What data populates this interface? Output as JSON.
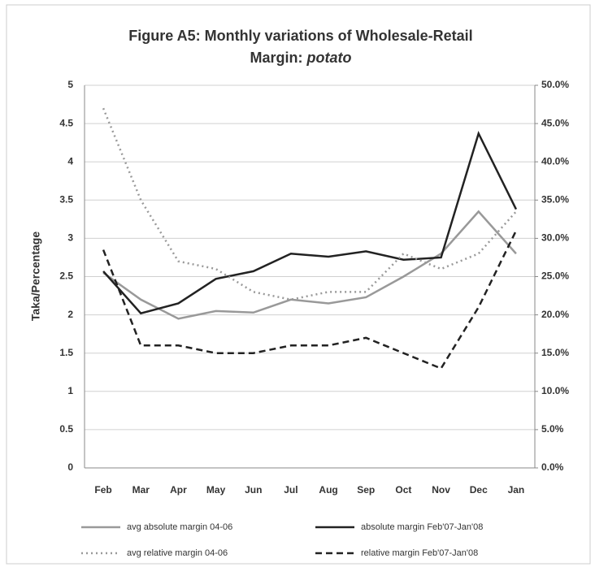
{
  "chart_data": {
    "type": "line",
    "title": [
      "Figure A5: Monthly variations of Wholesale-Retail",
      "Margin:"
    ],
    "title_emphasis": "potato",
    "ylabel": "Taka/Percentage",
    "categories": [
      "Feb",
      "Mar",
      "Apr",
      "May",
      "Jun",
      "Jul",
      "Aug",
      "Sep",
      "Oct",
      "Nov",
      "Dec",
      "Jan"
    ],
    "series": [
      {
        "name": "avg absolute margin 04-06",
        "color": "#999999",
        "style": "solid",
        "values": [
          2.55,
          2.2,
          1.95,
          2.05,
          2.03,
          2.2,
          2.15,
          2.23,
          2.5,
          2.8,
          3.35,
          2.8
        ]
      },
      {
        "name": "absolute margin Feb'07-Jan'08",
        "color": "#222222",
        "style": "solid",
        "values": [
          2.57,
          2.02,
          2.15,
          2.47,
          2.57,
          2.8,
          2.76,
          2.83,
          2.72,
          2.75,
          4.37,
          3.38
        ]
      },
      {
        "name": "avg relative margin 04-06",
        "color": "#999999",
        "style": "dotted",
        "axis": "y2",
        "values": [
          47,
          35,
          27,
          26,
          23,
          22,
          23,
          23,
          28,
          26,
          28,
          33.5
        ]
      },
      {
        "name": "relative margin Feb'07-Jan'08",
        "color": "#222222",
        "style": "dashed",
        "axis": "y2",
        "values": [
          28.5,
          16,
          16,
          15,
          15,
          16,
          16,
          17,
          15,
          13,
          21,
          31
        ]
      }
    ],
    "ylim": [
      0,
      5
    ],
    "yticks": [
      0,
      0.5,
      1,
      1.5,
      2,
      2.5,
      3,
      3.5,
      4,
      4.5,
      5
    ],
    "y2lim": [
      0,
      50
    ],
    "y2ticks": [
      {
        "value": 0,
        "label": "0.0%"
      },
      {
        "value": 5,
        "label": "5.0%"
      },
      {
        "value": 10,
        "label": "10.0%"
      },
      {
        "value": 15,
        "label": "15.0%"
      },
      {
        "value": 20,
        "label": "20.0%"
      },
      {
        "value": 25,
        "label": "25.0%"
      },
      {
        "value": 30,
        "label": "30.0%"
      },
      {
        "value": 35,
        "label": "35.0%"
      },
      {
        "value": 40,
        "label": "40.0%"
      },
      {
        "value": 45,
        "label": "45.0%"
      },
      {
        "value": 50,
        "label": "50.0%"
      }
    ],
    "grid": true,
    "legend": "bottom"
  }
}
